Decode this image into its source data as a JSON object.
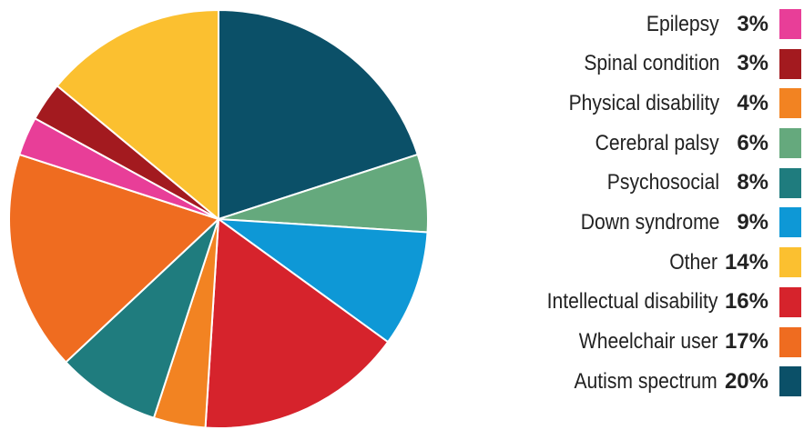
{
  "chart_data": {
    "type": "pie",
    "slices": [
      {
        "label": "Autism spectrum",
        "value": 20,
        "display": "20%",
        "color": "#0b5068"
      },
      {
        "label": "Cerebral palsy",
        "value": 6,
        "display": "6%",
        "color": "#65a97d"
      },
      {
        "label": "Down syndrome",
        "value": 9,
        "display": "9%",
        "color": "#0e98d6"
      },
      {
        "label": "Intellectual disability",
        "value": 16,
        "display": "16%",
        "color": "#d6232c"
      },
      {
        "label": "Physical disability",
        "value": 4,
        "display": "4%",
        "color": "#f28322"
      },
      {
        "label": "Psychosocial",
        "value": 8,
        "display": "8%",
        "color": "#1f7c7e"
      },
      {
        "label": "Wheelchair user",
        "value": 17,
        "display": "17%",
        "color": "#ef6c20"
      },
      {
        "label": "Epilepsy",
        "value": 3,
        "display": "3%",
        "color": "#e83e98"
      },
      {
        "label": "Spinal condition",
        "value": 3,
        "display": "3%",
        "color": "#a31a1f"
      },
      {
        "label": "Other",
        "value": 14,
        "display": "14%",
        "color": "#fbc030"
      }
    ],
    "legend": {
      "placement": "right",
      "order": [
        "Epilepsy",
        "Spinal condition",
        "Physical disability",
        "Cerebral palsy",
        "Psychosocial",
        "Down syndrome",
        "Other",
        "Intellectual disability",
        "Wheelchair user",
        "Autism spectrum"
      ]
    },
    "start_angle": "12 o'clock",
    "direction": "clockwise"
  }
}
